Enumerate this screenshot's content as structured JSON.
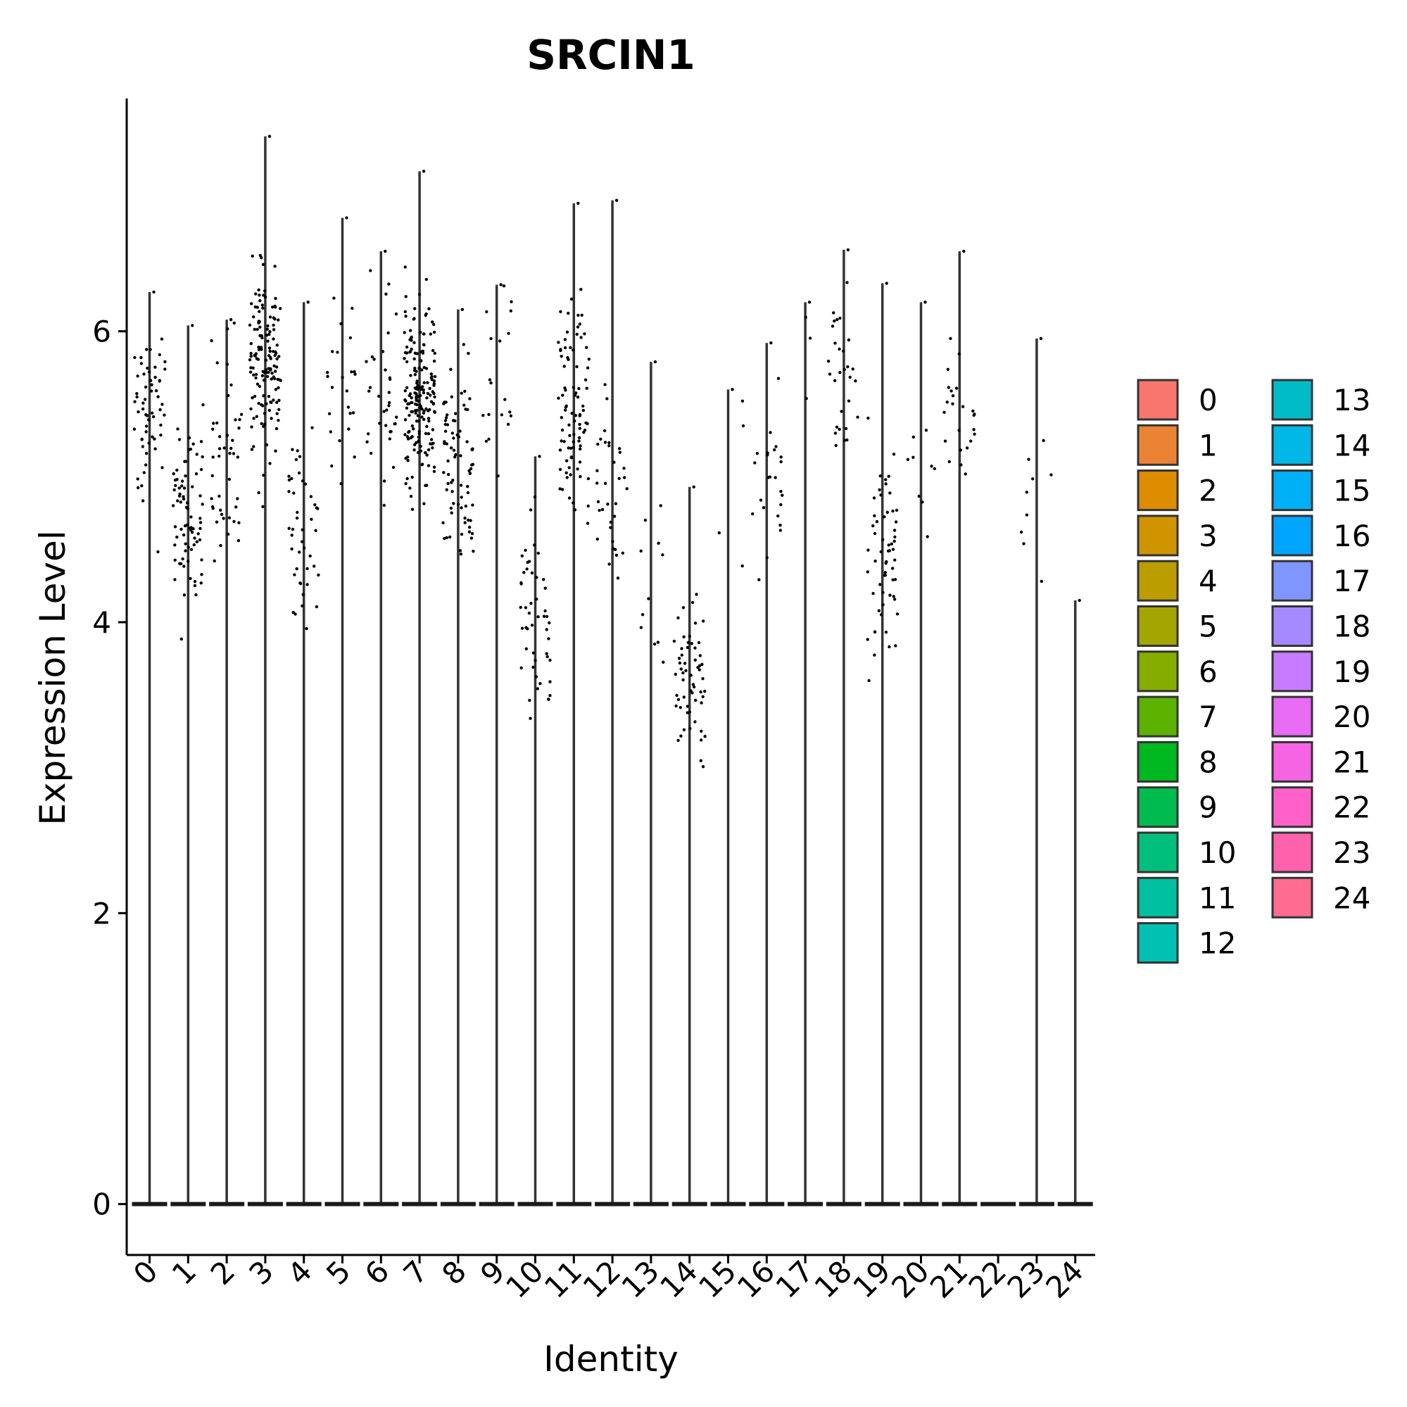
{
  "chart_data": {
    "type": "violin",
    "title": "SRCIN1",
    "xlabel": "Identity",
    "ylabel": "Expression Level",
    "ylim": [
      -0.35,
      7.6
    ],
    "yticks": [
      0,
      2,
      4,
      6
    ],
    "categories": [
      "0",
      "1",
      "2",
      "3",
      "4",
      "5",
      "6",
      "7",
      "8",
      "9",
      "10",
      "11",
      "12",
      "13",
      "14",
      "15",
      "16",
      "17",
      "18",
      "19",
      "20",
      "21",
      "22",
      "23",
      "24"
    ],
    "max_values": [
      6.27,
      6.04,
      6.08,
      7.34,
      6.2,
      6.78,
      6.55,
      7.1,
      6.15,
      6.32,
      5.14,
      6.88,
      6.9,
      5.79,
      4.93,
      5.6,
      5.92,
      6.2,
      6.56,
      6.33,
      6.2,
      6.55,
      0.0,
      5.95,
      4.15
    ],
    "point_centers": [
      5.4,
      4.7,
      5.2,
      5.8,
      4.6,
      5.6,
      5.6,
      5.5,
      5.1,
      5.7,
      4.0,
      5.5,
      5.0,
      4.3,
      3.6,
      5.0,
      5.0,
      6.0,
      5.7,
      4.5,
      5.0,
      5.5,
      0.0,
      5.0,
      4.15
    ],
    "point_counts": [
      60,
      80,
      45,
      140,
      45,
      25,
      35,
      190,
      80,
      20,
      50,
      90,
      35,
      12,
      60,
      5,
      25,
      4,
      30,
      60,
      10,
      25,
      0,
      10,
      1
    ],
    "baseline_value": 0,
    "legend": {
      "position": "right",
      "columns": 2,
      "entries": [
        "0",
        "1",
        "2",
        "3",
        "4",
        "5",
        "6",
        "7",
        "8",
        "9",
        "10",
        "11",
        "12",
        "13",
        "14",
        "15",
        "16",
        "17",
        "18",
        "19",
        "20",
        "21",
        "22",
        "23",
        "24"
      ],
      "colors": [
        "#F8766D",
        "#EB8335",
        "#DE8C00",
        "#CF9400",
        "#BB9D00",
        "#A3A500",
        "#85AD00",
        "#5BB300",
        "#00B81F",
        "#00BB4E",
        "#00BF7D",
        "#00C0A0",
        "#00C1B2",
        "#00BCC8",
        "#00B8E7",
        "#00B0F6",
        "#00A5FF",
        "#7F96FF",
        "#A58AFF",
        "#C77CFF",
        "#E76BF3",
        "#F564E3",
        "#FF61C9",
        "#FF62AD",
        "#FF6C91"
      ]
    },
    "grid": false
  }
}
